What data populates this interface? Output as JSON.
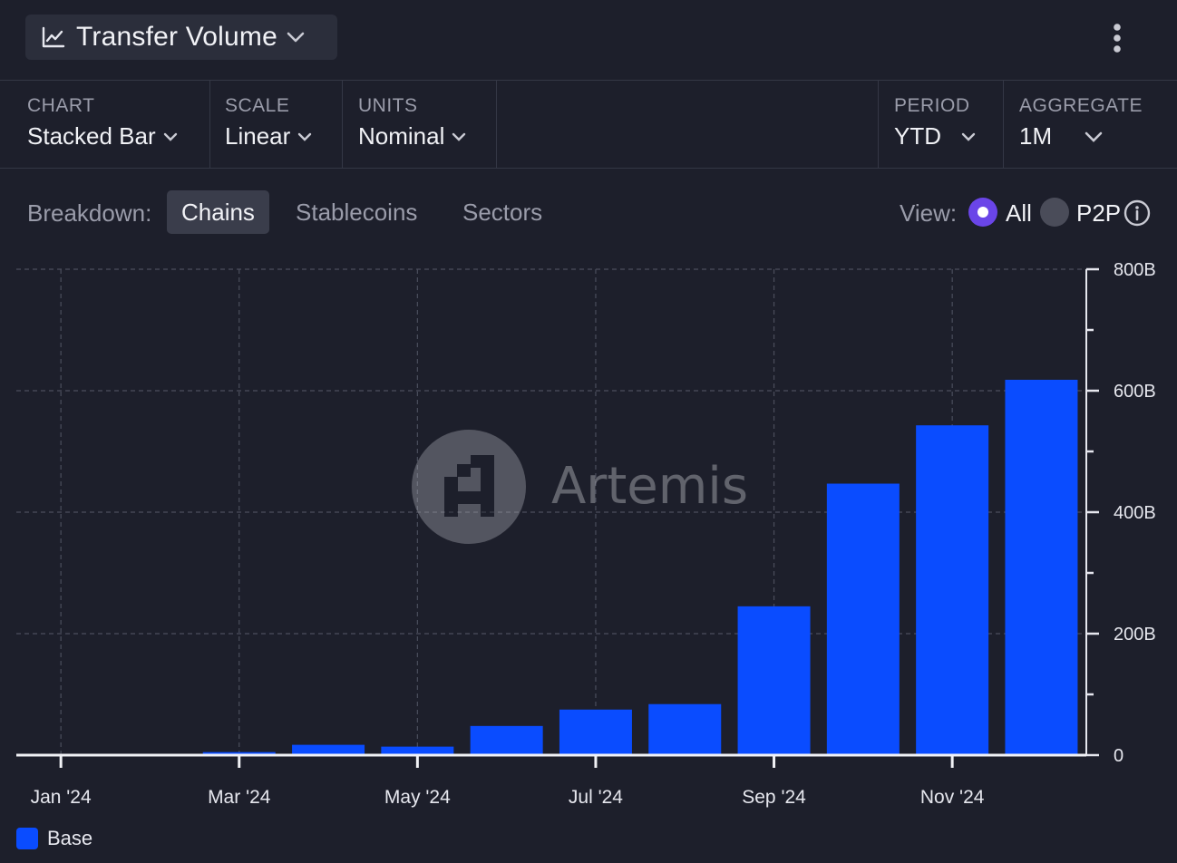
{
  "header": {
    "title": "Transfer Volume",
    "title_icon": "line-chart-icon",
    "menu_icon": "more-vertical-icon"
  },
  "controls": {
    "chart": {
      "label": "CHART",
      "value": "Stacked Bar"
    },
    "scale": {
      "label": "SCALE",
      "value": "Linear"
    },
    "units": {
      "label": "UNITS",
      "value": "Nominal"
    },
    "period": {
      "label": "PERIOD",
      "value": "YTD"
    },
    "aggregate": {
      "label": "AGGREGATE",
      "value": "1M"
    }
  },
  "breakdown": {
    "label": "Breakdown:",
    "tabs": [
      "Chains",
      "Stablecoins",
      "Sectors"
    ],
    "active": "Chains"
  },
  "view": {
    "label": "View:",
    "options": [
      "All",
      "P2P"
    ],
    "selected": "All"
  },
  "watermark": "Artemis",
  "colors": {
    "background": "#1d1f2b",
    "bar": "#0a4cff",
    "accent": "#6a45e8"
  },
  "chart_data": {
    "type": "bar",
    "stacked": true,
    "categories": [
      "Jan '24",
      "Feb '24",
      "Mar '24",
      "Apr '24",
      "May '24",
      "Jun '24",
      "Jul '24",
      "Aug '24",
      "Sep '24",
      "Oct '24",
      "Nov '24",
      "Dec '24"
    ],
    "x_tick_labels": [
      "Jan '24",
      "Mar '24",
      "May '24",
      "Jul '24",
      "Sep '24",
      "Nov '24"
    ],
    "series": [
      {
        "name": "Base",
        "color": "#0a4cff",
        "values": [
          0,
          0,
          5,
          17,
          14,
          48,
          75,
          84,
          245,
          447,
          543,
          618
        ]
      }
    ],
    "y_ticks": [
      0,
      200,
      400,
      600,
      800
    ],
    "y_tick_labels": [
      "0",
      "200B",
      "400B",
      "600B",
      "800B"
    ],
    "ylim": [
      0,
      800
    ],
    "y_unit": "B",
    "grid": true,
    "legend": "bottom-left"
  }
}
